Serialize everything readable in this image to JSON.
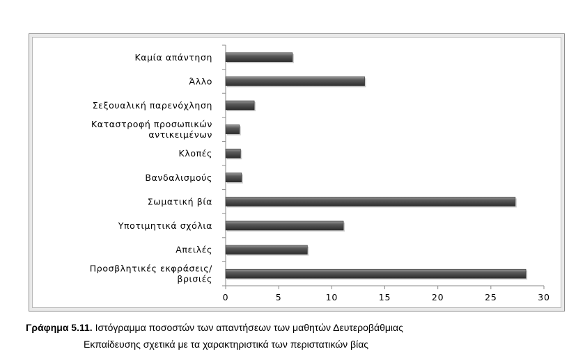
{
  "chart_data": {
    "type": "bar",
    "orientation": "horizontal",
    "categories": [
      "Καμία απάντηση",
      "Άλλο",
      "Σεξουαλική παρενόχληση",
      "Καταστροφή προσωπικών αντικειμένων",
      "Κλοπές",
      "Βανδαλισμούς",
      "Σωματική βία",
      "Υποτιμητικά σχόλια",
      "Απειλές",
      "Προσβλητικές εκφράσεις/ βρισιές"
    ],
    "category_lines": [
      [
        "Καμία απάντηση"
      ],
      [
        "Άλλο"
      ],
      [
        "Σεξουαλική παρενόχληση"
      ],
      [
        "Καταστροφή προσωπικών",
        "αντικειμένων"
      ],
      [
        "Κλοπές"
      ],
      [
        "Βανδαλισμούς"
      ],
      [
        "Σωματική βία"
      ],
      [
        "Υποτιμητικά σχόλια"
      ],
      [
        "Απειλές"
      ],
      [
        "Προσβλητικές εκφράσεις/",
        "βρισιές"
      ]
    ],
    "values": [
      6.3,
      13.1,
      2.7,
      1.3,
      1.4,
      1.5,
      27.3,
      11.1,
      7.7,
      28.3
    ],
    "xlim": [
      0,
      30
    ],
    "xticks": [
      0,
      5,
      10,
      15,
      20,
      25,
      30
    ],
    "bar_color": "#4a4a4a",
    "grid": false
  },
  "caption": {
    "number": "Γράφημα 5.11.",
    "line1": "Ιστόγραμμα ποσοστών των απαντήσεων των μαθητών Δευτεροβάθμιας",
    "line2": "Εκπαίδευσης σχετικά με τα χαρακτηριστικά των περιστατικών βίας"
  }
}
